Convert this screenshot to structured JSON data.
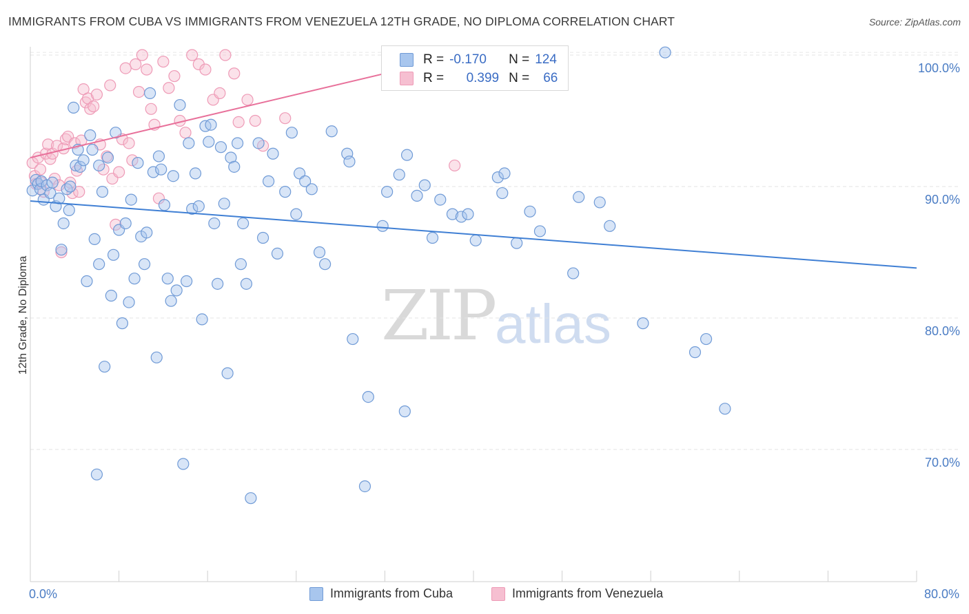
{
  "title": "IMMIGRANTS FROM CUBA VS IMMIGRANTS FROM VENEZUELA 12TH GRADE, NO DIPLOMA CORRELATION CHART",
  "source": "Source: ZipAtlas.com",
  "watermark": {
    "zip": "ZIP",
    "atlas": "atlas"
  },
  "legend": {
    "r_label": "R =",
    "n_label": "N =",
    "cuba": {
      "r": "-0.170",
      "n": "124"
    },
    "venezuela": {
      "r": "0.399",
      "n": "66"
    }
  },
  "colors": {
    "cuba_fill": "#a8c6ee",
    "cuba_stroke": "#6f9ad6",
    "cuba_line": "#3f7fd4",
    "venezuela_fill": "#f6bfd1",
    "venezuela_stroke": "#ee9ab6",
    "venezuela_line": "#e8709a",
    "tick_text": "#4a7cc4"
  },
  "chart_data": {
    "type": "scatter",
    "title": "IMMIGRANTS FROM CUBA VS IMMIGRANTS FROM VENEZUELA 12TH GRADE, NO DIPLOMA CORRELATION CHART",
    "xlabel": "",
    "ylabel": "12th Grade, No Diploma",
    "xlim": [
      0,
      80
    ],
    "ylim": [
      61,
      101
    ],
    "x_tick_labels": [
      "0.0%",
      "80.0%"
    ],
    "y_ticks": [
      70,
      80,
      90,
      100
    ],
    "y_tick_labels": [
      "70.0%",
      "80.0%",
      "90.0%",
      "100.0%"
    ],
    "grid": true,
    "legend_position": "bottom",
    "series": [
      {
        "name": "Immigrants from Cuba",
        "trend": {
          "x": [
            0,
            80
          ],
          "y": [
            88.9,
            83.8
          ]
        },
        "points": [
          [
            0.2,
            89.7
          ],
          [
            0.5,
            90.5
          ],
          [
            0.7,
            90.2
          ],
          [
            0.9,
            89.8
          ],
          [
            1.0,
            90.4
          ],
          [
            1.2,
            89.0
          ],
          [
            1.5,
            90.1
          ],
          [
            1.8,
            89.5
          ],
          [
            2.0,
            90.3
          ],
          [
            2.3,
            88.5
          ],
          [
            2.6,
            89.1
          ],
          [
            2.8,
            85.2
          ],
          [
            3.0,
            87.2
          ],
          [
            3.3,
            89.8
          ],
          [
            3.6,
            90.0
          ],
          [
            3.9,
            96.0
          ],
          [
            4.1,
            91.6
          ],
          [
            4.3,
            92.8
          ],
          [
            4.5,
            91.5
          ],
          [
            4.8,
            92.0
          ],
          [
            5.1,
            82.8
          ],
          [
            5.4,
            93.9
          ],
          [
            5.6,
            92.8
          ],
          [
            5.8,
            86.0
          ],
          [
            6.0,
            68.1
          ],
          [
            6.2,
            91.6
          ],
          [
            6.5,
            89.6
          ],
          [
            6.7,
            76.3
          ],
          [
            7.0,
            92.2
          ],
          [
            7.3,
            81.7
          ],
          [
            7.5,
            84.8
          ],
          [
            7.7,
            94.1
          ],
          [
            8.0,
            86.7
          ],
          [
            8.3,
            79.6
          ],
          [
            8.6,
            87.2
          ],
          [
            8.9,
            81.2
          ],
          [
            9.1,
            89.0
          ],
          [
            9.4,
            83.0
          ],
          [
            9.7,
            91.8
          ],
          [
            10.0,
            86.2
          ],
          [
            10.3,
            84.1
          ],
          [
            10.5,
            86.5
          ],
          [
            10.8,
            97.1
          ],
          [
            11.1,
            91.1
          ],
          [
            11.4,
            77.0
          ],
          [
            11.6,
            92.3
          ],
          [
            11.8,
            91.3
          ],
          [
            12.1,
            88.6
          ],
          [
            12.4,
            83.0
          ],
          [
            12.7,
            81.3
          ],
          [
            12.9,
            90.8
          ],
          [
            13.2,
            82.1
          ],
          [
            13.5,
            96.2
          ],
          [
            13.8,
            68.9
          ],
          [
            14.1,
            82.8
          ],
          [
            14.3,
            93.3
          ],
          [
            14.6,
            88.3
          ],
          [
            14.9,
            91.0
          ],
          [
            15.2,
            88.5
          ],
          [
            15.5,
            79.9
          ],
          [
            15.8,
            94.6
          ],
          [
            16.1,
            93.4
          ],
          [
            16.3,
            94.7
          ],
          [
            16.6,
            87.2
          ],
          [
            16.9,
            82.6
          ],
          [
            17.2,
            93.0
          ],
          [
            17.5,
            88.7
          ],
          [
            17.8,
            75.8
          ],
          [
            18.1,
            92.2
          ],
          [
            18.4,
            91.5
          ],
          [
            18.7,
            93.3
          ],
          [
            19.0,
            84.1
          ],
          [
            19.2,
            87.2
          ],
          [
            19.5,
            82.6
          ],
          [
            19.9,
            66.3
          ],
          [
            20.6,
            93.3
          ],
          [
            21.0,
            86.1
          ],
          [
            21.5,
            90.4
          ],
          [
            21.9,
            92.5
          ],
          [
            22.3,
            84.9
          ],
          [
            23.0,
            89.6
          ],
          [
            23.6,
            94.1
          ],
          [
            24.0,
            87.9
          ],
          [
            24.3,
            91.0
          ],
          [
            24.8,
            90.4
          ],
          [
            25.4,
            89.8
          ],
          [
            26.1,
            85.0
          ],
          [
            27.2,
            94.2
          ],
          [
            28.6,
            92.5
          ],
          [
            28.8,
            91.9
          ],
          [
            29.1,
            78.4
          ],
          [
            30.2,
            67.2
          ],
          [
            30.5,
            74.0
          ],
          [
            31.8,
            87.0
          ],
          [
            32.2,
            89.6
          ],
          [
            33.3,
            90.9
          ],
          [
            33.8,
            72.9
          ],
          [
            34.0,
            92.4
          ],
          [
            34.9,
            89.3
          ],
          [
            35.6,
            90.1
          ],
          [
            36.3,
            86.1
          ],
          [
            37.0,
            89.0
          ],
          [
            38.1,
            87.9
          ],
          [
            38.9,
            87.7
          ],
          [
            39.5,
            87.9
          ],
          [
            40.2,
            85.9
          ],
          [
            42.2,
            90.7
          ],
          [
            42.6,
            89.5
          ],
          [
            42.8,
            91.0
          ],
          [
            43.9,
            85.7
          ],
          [
            45.1,
            88.1
          ],
          [
            46.0,
            86.6
          ],
          [
            49.0,
            83.4
          ],
          [
            49.5,
            89.2
          ],
          [
            51.4,
            88.8
          ],
          [
            52.3,
            87.0
          ],
          [
            55.3,
            79.6
          ],
          [
            57.3,
            100.2
          ],
          [
            60.0,
            77.4
          ],
          [
            61.0,
            78.4
          ],
          [
            62.7,
            73.1
          ],
          [
            3.5,
            88.2
          ],
          [
            6.2,
            84.1
          ],
          [
            26.6,
            84.1
          ]
        ]
      },
      {
        "name": "Immigrants from Venezuela",
        "trend": {
          "x": [
            0,
            40
          ],
          "y": [
            92.2,
            100.2
          ]
        },
        "points": [
          [
            0.2,
            91.8
          ],
          [
            0.4,
            90.8
          ],
          [
            0.5,
            90.2
          ],
          [
            0.7,
            92.2
          ],
          [
            0.9,
            91.3
          ],
          [
            1.0,
            90.3
          ],
          [
            1.2,
            89.6
          ],
          [
            1.4,
            92.5
          ],
          [
            1.6,
            93.2
          ],
          [
            1.8,
            92.1
          ],
          [
            2.0,
            92.5
          ],
          [
            2.2,
            90.6
          ],
          [
            2.4,
            93.1
          ],
          [
            2.6,
            90.1
          ],
          [
            2.8,
            85.0
          ],
          [
            3.0,
            92.9
          ],
          [
            3.2,
            93.6
          ],
          [
            3.4,
            93.8
          ],
          [
            3.6,
            90.3
          ],
          [
            3.8,
            89.5
          ],
          [
            4.0,
            93.3
          ],
          [
            4.2,
            91.2
          ],
          [
            4.4,
            89.6
          ],
          [
            4.6,
            93.5
          ],
          [
            4.8,
            97.4
          ],
          [
            5.0,
            96.4
          ],
          [
            5.2,
            96.7
          ],
          [
            5.4,
            95.9
          ],
          [
            5.7,
            96.1
          ],
          [
            6.0,
            97.0
          ],
          [
            6.3,
            93.2
          ],
          [
            6.6,
            91.3
          ],
          [
            6.9,
            92.3
          ],
          [
            7.2,
            97.7
          ],
          [
            7.4,
            90.6
          ],
          [
            7.7,
            87.1
          ],
          [
            8.0,
            91.1
          ],
          [
            8.3,
            93.6
          ],
          [
            8.6,
            99.0
          ],
          [
            8.9,
            93.3
          ],
          [
            9.2,
            92.0
          ],
          [
            9.5,
            99.3
          ],
          [
            9.8,
            97.2
          ],
          [
            10.1,
            100.0
          ],
          [
            10.5,
            98.9
          ],
          [
            10.9,
            95.9
          ],
          [
            11.2,
            94.7
          ],
          [
            11.6,
            89.1
          ],
          [
            12.0,
            99.5
          ],
          [
            12.5,
            97.5
          ],
          [
            13.0,
            98.4
          ],
          [
            13.5,
            95.0
          ],
          [
            14.0,
            94.1
          ],
          [
            14.6,
            100.0
          ],
          [
            15.2,
            99.3
          ],
          [
            15.8,
            98.9
          ],
          [
            16.5,
            96.6
          ],
          [
            17.1,
            97.1
          ],
          [
            17.6,
            100.0
          ],
          [
            18.4,
            98.6
          ],
          [
            18.8,
            94.9
          ],
          [
            19.6,
            96.6
          ],
          [
            20.3,
            95.0
          ],
          [
            21.0,
            93.1
          ],
          [
            23.0,
            95.2
          ],
          [
            38.3,
            91.6
          ]
        ]
      }
    ]
  },
  "bottom_legend": {
    "cuba": "Immigrants from Cuba",
    "venezuela": "Immigrants from Venezuela"
  }
}
